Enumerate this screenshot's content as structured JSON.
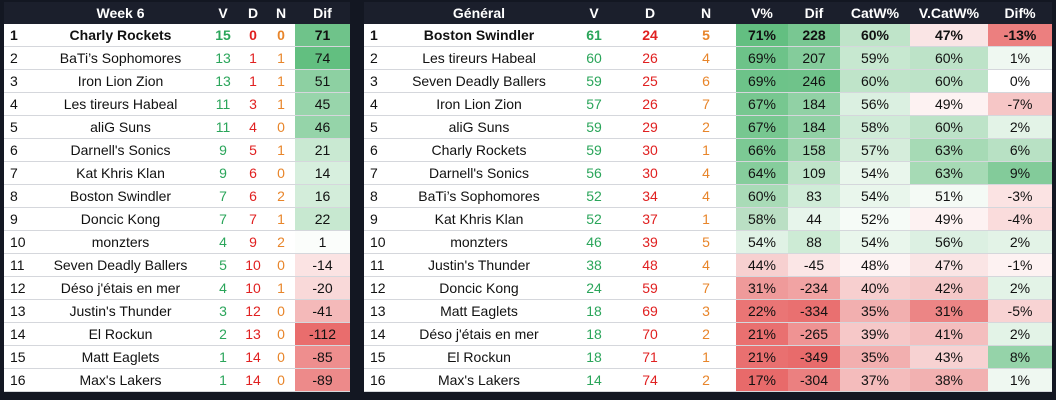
{
  "week": {
    "headers": [
      "",
      "Week 6",
      "V",
      "D",
      "N",
      "Dif"
    ],
    "rows": [
      {
        "rank": "1",
        "team": "Charly Rockets",
        "v": "15",
        "d": "0",
        "n": "0",
        "dif": "71",
        "dif_color": "#6fc38a"
      },
      {
        "rank": "2",
        "team": "BaTi’s Sophomores",
        "v": "13",
        "d": "1",
        "n": "1",
        "dif": "74",
        "dif_color": "#62bf80"
      },
      {
        "rank": "3",
        "team": "Iron Lion Zion",
        "v": "13",
        "d": "1",
        "n": "1",
        "dif": "51",
        "dif_color": "#8dd0a2"
      },
      {
        "rank": "4",
        "team": "Les tireurs Habeal",
        "v": "11",
        "d": "3",
        "n": "1",
        "dif": "45",
        "dif_color": "#98d5ab"
      },
      {
        "rank": "5",
        "team": "aliG Suns",
        "v": "11",
        "d": "4",
        "n": "0",
        "dif": "46",
        "dif_color": "#95d4a9"
      },
      {
        "rank": "6",
        "team": "Darnell's Sonics",
        "v": "9",
        "d": "5",
        "n": "1",
        "dif": "21",
        "dif_color": "#c9e9d2"
      },
      {
        "rank": "7",
        "team": "Kat Khris Klan",
        "v": "9",
        "d": "6",
        "n": "0",
        "dif": "14",
        "dif_color": "#d7efde"
      },
      {
        "rank": "8",
        "team": "Boston Swindler",
        "v": "7",
        "d": "6",
        "n": "2",
        "dif": "16",
        "dif_color": "#d3edda"
      },
      {
        "rank": "9",
        "team": "Doncic Kong",
        "v": "7",
        "d": "7",
        "n": "1",
        "dif": "22",
        "dif_color": "#c7e8d0"
      },
      {
        "rank": "10",
        "team": "monzters",
        "v": "4",
        "d": "9",
        "n": "2",
        "dif": "1",
        "dif_color": "#fbfdfb"
      },
      {
        "rank": "11",
        "team": "Seven Deadly Ballers",
        "v": "5",
        "d": "10",
        "n": "0",
        "dif": "-14",
        "dif_color": "#fbe3e3"
      },
      {
        "rank": "12",
        "team": "Déso j'étais en mer",
        "v": "4",
        "d": "10",
        "n": "1",
        "dif": "-20",
        "dif_color": "#f9d9d9"
      },
      {
        "rank": "13",
        "team": "Justin's Thunder",
        "v": "3",
        "d": "12",
        "n": "0",
        "dif": "-41",
        "dif_color": "#f4b9b9"
      },
      {
        "rank": "14",
        "team": "El Rockun",
        "v": "2",
        "d": "13",
        "n": "0",
        "dif": "-112",
        "dif_color": "#e96d6d"
      },
      {
        "rank": "15",
        "team": "Matt Eaglets",
        "v": "1",
        "d": "14",
        "n": "0",
        "dif": "-85",
        "dif_color": "#ee8e8e"
      },
      {
        "rank": "16",
        "team": "Max's Lakers",
        "v": "1",
        "d": "14",
        "n": "0",
        "dif": "-89",
        "dif_color": "#ed8a8a"
      }
    ]
  },
  "general": {
    "headers": [
      "",
      "Général",
      "V",
      "D",
      "N",
      "V%",
      "Dif",
      "CatW%",
      "V.CatW%",
      "Dif%"
    ],
    "rows": [
      {
        "rank": "1",
        "team": "Boston Swindler",
        "v": "61",
        "d": "24",
        "n": "5",
        "vp": "71%",
        "vp_color": "#63bf81",
        "dif": "228",
        "dif_color": "#79c792",
        "catw": "60%",
        "catw_color": "#bfe4c9",
        "vcatw": "47%",
        "vcatw_color": "#fae5e5",
        "difp": "-13%",
        "difp_color": "#ec7f7f"
      },
      {
        "rank": "2",
        "team": "Les tireurs Habeal",
        "v": "60",
        "d": "26",
        "n": "4",
        "vp": "69%",
        "vp_color": "#6dc389",
        "dif": "207",
        "dif_color": "#84cc9b",
        "catw": "59%",
        "catw_color": "#c7e8d0",
        "vcatw": "60%",
        "vcatw_color": "#bde3c8",
        "difp": "1%",
        "difp_color": "#eff8f1"
      },
      {
        "rank": "3",
        "team": "Seven Deadly Ballers",
        "v": "59",
        "d": "25",
        "n": "6",
        "vp": "69%",
        "vp_color": "#6dc389",
        "dif": "246",
        "dif_color": "#6fc38a",
        "catw": "60%",
        "catw_color": "#bfe4c9",
        "vcatw": "60%",
        "vcatw_color": "#bde3c8",
        "difp": "0%",
        "difp_color": "#ffffff"
      },
      {
        "rank": "4",
        "team": "Iron Lion Zion",
        "v": "57",
        "d": "26",
        "n": "7",
        "vp": "67%",
        "vp_color": "#77c790",
        "dif": "184",
        "dif_color": "#91d1a5",
        "catw": "56%",
        "catw_color": "#dbf0e1",
        "vcatw": "49%",
        "vcatw_color": "#fdf2f2",
        "difp": "-7%",
        "difp_color": "#f6c6c6"
      },
      {
        "rank": "5",
        "team": "aliG Suns",
        "v": "59",
        "d": "29",
        "n": "2",
        "vp": "67%",
        "vp_color": "#77c790",
        "dif": "184",
        "dif_color": "#91d1a5",
        "catw": "58%",
        "catw_color": "#cfebd7",
        "vcatw": "60%",
        "vcatw_color": "#bde3c8",
        "difp": "2%",
        "difp_color": "#e3f3e7"
      },
      {
        "rank": "6",
        "team": "Charly Rockets",
        "v": "59",
        "d": "30",
        "n": "1",
        "vp": "66%",
        "vp_color": "#7cc994",
        "dif": "158",
        "dif_color": "#a1d8b1",
        "catw": "57%",
        "catw_color": "#d5eddb",
        "vcatw": "63%",
        "vcatw_color": "#a6dab5",
        "difp": "6%",
        "difp_color": "#b8e1c4"
      },
      {
        "rank": "7",
        "team": "Darnell's Sonics",
        "v": "56",
        "d": "30",
        "n": "4",
        "vp": "64%",
        "vp_color": "#86cd9c",
        "dif": "109",
        "dif_color": "#bfe4c9",
        "catw": "54%",
        "catw_color": "#e9f6ec",
        "vcatw": "63%",
        "vcatw_color": "#a6dab5",
        "difp": "9%",
        "difp_color": "#83cb9a"
      },
      {
        "rank": "8",
        "team": "BaTi’s Sophomores",
        "v": "52",
        "d": "34",
        "n": "4",
        "vp": "60%",
        "vp_color": "#a9dbb7",
        "dif": "83",
        "dif_color": "#d0ecd8",
        "catw": "54%",
        "catw_color": "#e9f6ec",
        "vcatw": "51%",
        "vcatw_color": "#f4faf5",
        "difp": "-3%",
        "difp_color": "#fbe3e3"
      },
      {
        "rank": "9",
        "team": "Kat Khris Klan",
        "v": "52",
        "d": "37",
        "n": "1",
        "vp": "58%",
        "vp_color": "#badfc4",
        "dif": "44",
        "dif_color": "#e7f5eb",
        "catw": "52%",
        "catw_color": "#f6fbf7",
        "vcatw": "49%",
        "vcatw_color": "#fdf2f2",
        "difp": "-4%",
        "difp_color": "#fadcdc"
      },
      {
        "rank": "10",
        "team": "monzters",
        "v": "46",
        "d": "39",
        "n": "5",
        "vp": "54%",
        "vp_color": "#e0f2e5",
        "dif": "88",
        "dif_color": "#cdebd5",
        "catw": "54%",
        "catw_color": "#e9f6ec",
        "vcatw": "56%",
        "vcatw_color": "#dcf0e2",
        "difp": "2%",
        "difp_color": "#e3f3e7"
      },
      {
        "rank": "11",
        "team": "Justin's Thunder",
        "v": "38",
        "d": "48",
        "n": "4",
        "vp": "44%",
        "vp_color": "#f7d0d0",
        "dif": "-45",
        "dif_color": "#fbe6e6",
        "catw": "48%",
        "catw_color": "#fdf3f3",
        "vcatw": "47%",
        "vcatw_color": "#fae5e5",
        "difp": "-1%",
        "difp_color": "#fdf2f2"
      },
      {
        "rank": "12",
        "team": "Doncic Kong",
        "v": "24",
        "d": "59",
        "n": "7",
        "vp": "31%",
        "vp_color": "#ef9a9a",
        "dif": "-234",
        "dif_color": "#f1a3a3",
        "catw": "40%",
        "catw_color": "#f7cfcf",
        "vcatw": "42%",
        "vcatw_color": "#f5c8c8",
        "difp": "2%",
        "difp_color": "#e3f3e7"
      },
      {
        "rank": "13",
        "team": "Matt Eaglets",
        "v": "18",
        "d": "69",
        "n": "3",
        "vp": "22%",
        "vp_color": "#ea7575",
        "dif": "-334",
        "dif_color": "#e97070",
        "catw": "35%",
        "catw_color": "#f2afaf",
        "vcatw": "31%",
        "vcatw_color": "#ec8585",
        "difp": "-5%",
        "difp_color": "#f8d3d3"
      },
      {
        "rank": "14",
        "team": "Déso j'étais en mer",
        "v": "18",
        "d": "70",
        "n": "2",
        "vp": "21%",
        "vp_color": "#e97070",
        "dif": "-265",
        "dif_color": "#ef9393",
        "catw": "39%",
        "catw_color": "#f6c8c8",
        "vcatw": "41%",
        "vcatw_color": "#f4bebe",
        "difp": "2%",
        "difp_color": "#e3f3e7"
      },
      {
        "rank": "15",
        "team": "El Rockun",
        "v": "18",
        "d": "71",
        "n": "1",
        "vp": "21%",
        "vp_color": "#e97070",
        "dif": "-349",
        "dif_color": "#e86b6b",
        "catw": "35%",
        "catw_color": "#f2afaf",
        "vcatw": "43%",
        "vcatw_color": "#f7d2d2",
        "difp": "8%",
        "difp_color": "#95d3a9"
      },
      {
        "rank": "16",
        "team": "Max's Lakers",
        "v": "14",
        "d": "74",
        "n": "2",
        "vp": "17%",
        "vp_color": "#e86a6a",
        "dif": "-304",
        "dif_color": "#eb8080",
        "catw": "37%",
        "catw_color": "#f4bcbc",
        "vcatw": "38%",
        "vcatw_color": "#f2b1b1",
        "difp": "1%",
        "difp_color": "#eff8f1"
      }
    ]
  }
}
